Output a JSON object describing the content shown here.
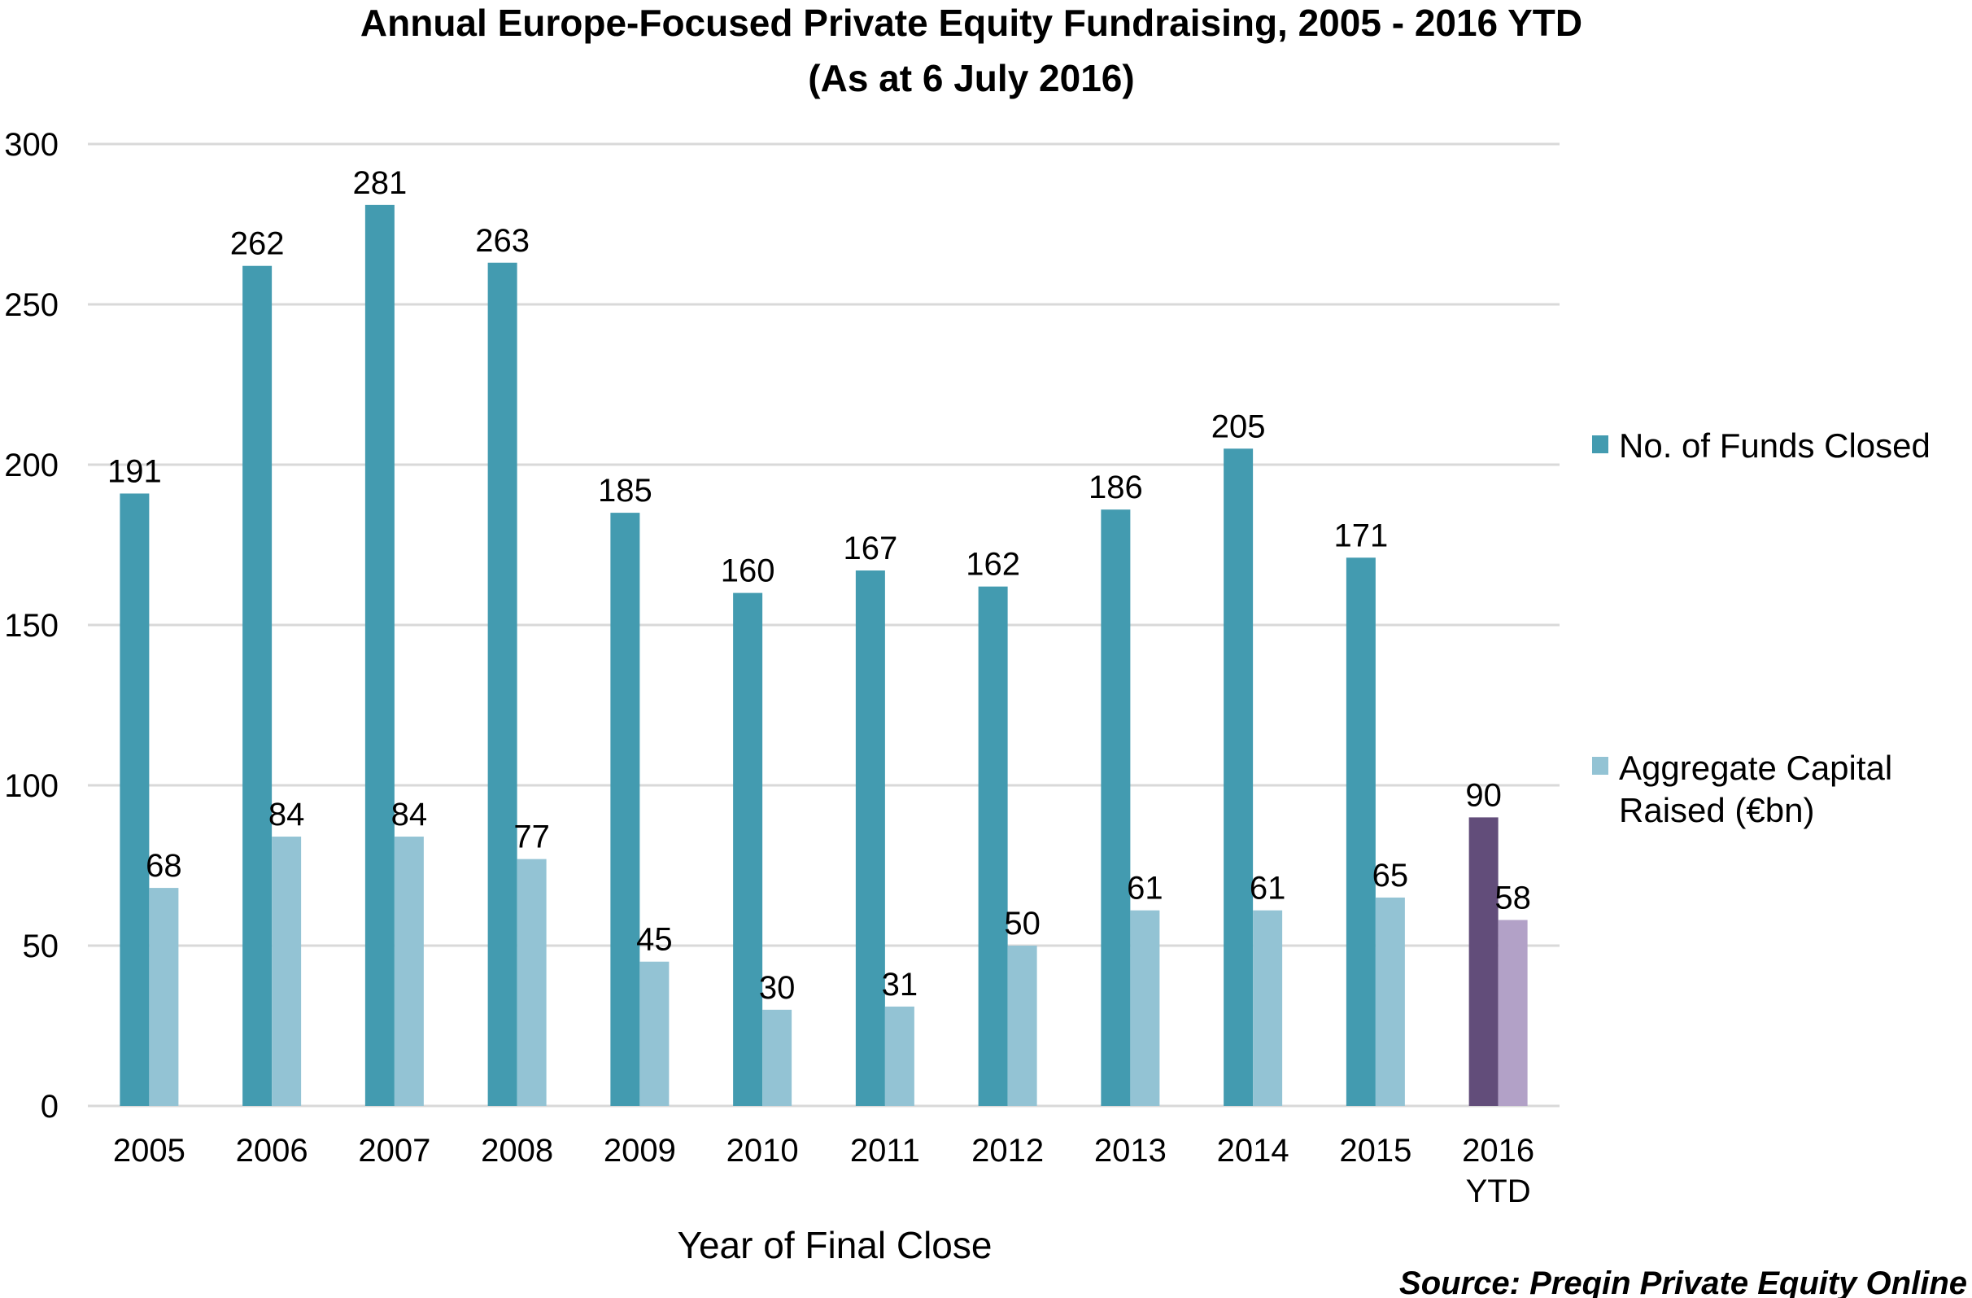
{
  "chart_data": {
    "type": "bar",
    "title": "Annual Europe-Focused Private Equity Fundraising, 2005 - 2016 YTD",
    "subtitle": "(As at 6 July 2016)",
    "xlabel": "Year of Final Close",
    "ylabel": "",
    "ylim": [
      0,
      300
    ],
    "yticks": [
      "0",
      "50",
      "100",
      "150",
      "200",
      "250",
      "300"
    ],
    "grid": true,
    "legend_position": "right",
    "categories": [
      "2005",
      "2006",
      "2007",
      "2008",
      "2009",
      "2010",
      "2011",
      "2012",
      "2013",
      "2014",
      "2015",
      "2016 YTD"
    ],
    "series": [
      {
        "name": "No. of Funds Closed",
        "color": "#439BB0",
        "highlight_color": "#624D7A",
        "values": [
          191,
          262,
          281,
          263,
          185,
          160,
          167,
          162,
          186,
          205,
          171,
          90
        ]
      },
      {
        "name": "Aggregate Capital Raised (€bn)",
        "color": "#93C3D4",
        "highlight_color": "#B2A1C7",
        "values": [
          68,
          84,
          84,
          77,
          45,
          30,
          31,
          50,
          61,
          61,
          65,
          58
        ]
      }
    ],
    "source": "Source: Preqin Private Equity Online"
  }
}
